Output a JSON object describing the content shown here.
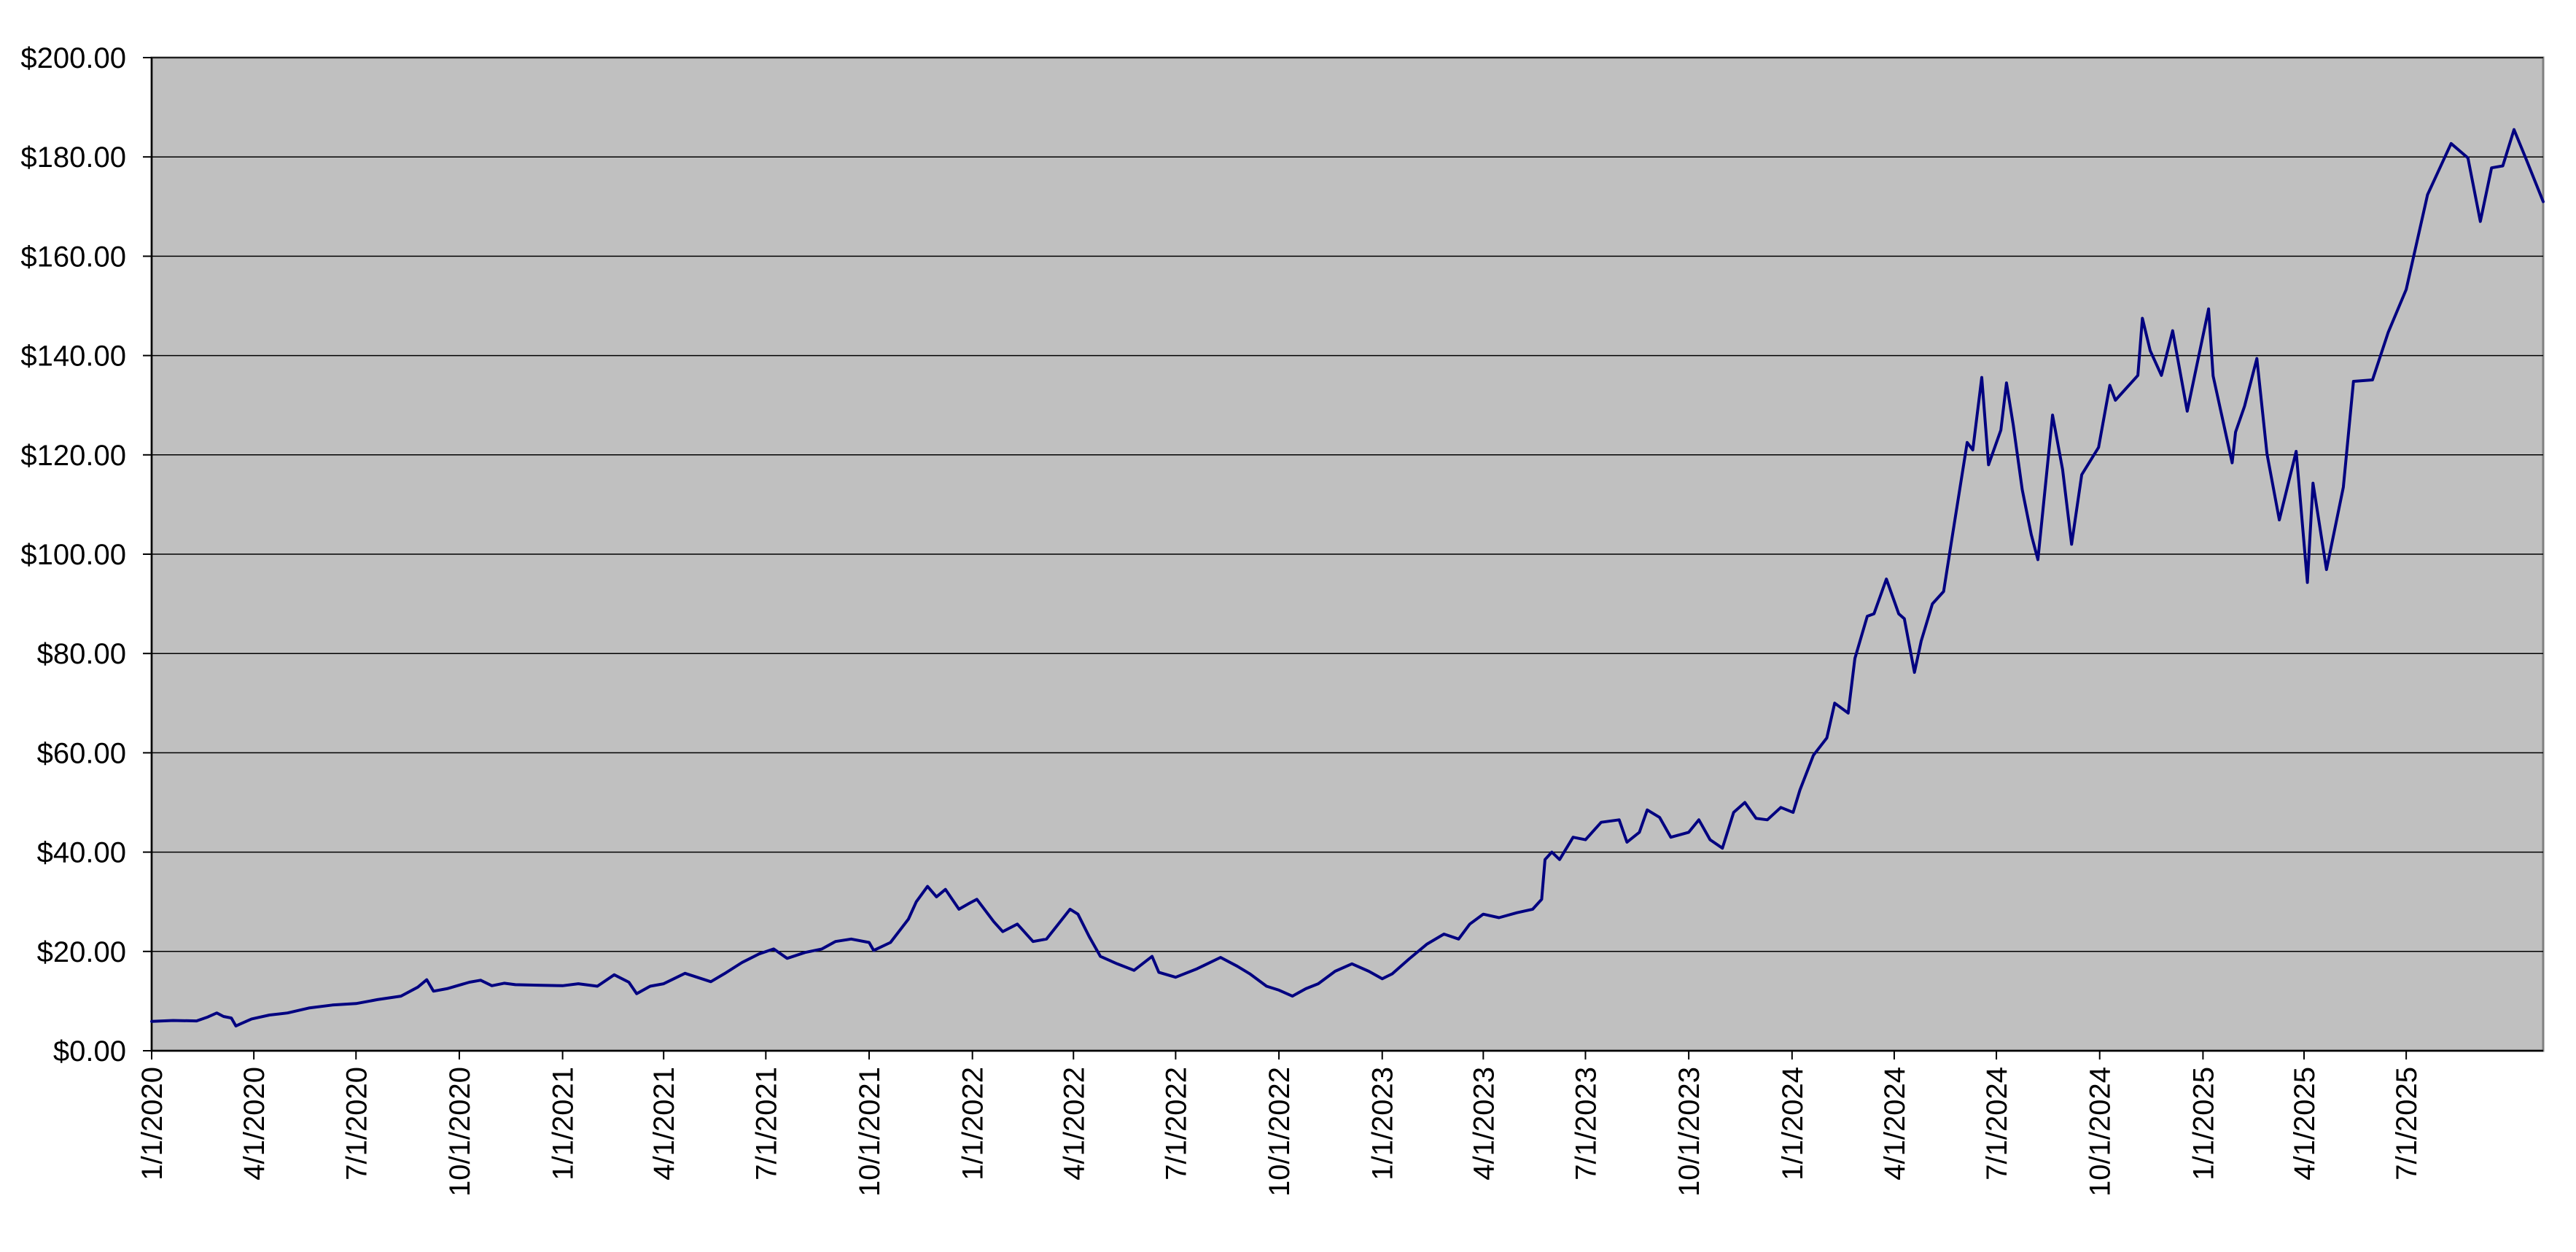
{
  "chart_data": {
    "type": "line",
    "title": "",
    "xlabel": "",
    "ylabel": "",
    "x_range": [
      "2020-01-01",
      "2025-10-31"
    ],
    "ylim": [
      0,
      200
    ],
    "grid": true,
    "legend": "none",
    "colors": {
      "plot_background": "#c0c0c0",
      "gridline": "#000000",
      "series": "#000080",
      "axis": "#000000"
    },
    "y_ticks": [
      {
        "value": 0,
        "label": "$0.00"
      },
      {
        "value": 20,
        "label": "$20.00"
      },
      {
        "value": 40,
        "label": "$40.00"
      },
      {
        "value": 60,
        "label": "$60.00"
      },
      {
        "value": 80,
        "label": "$80.00"
      },
      {
        "value": 100,
        "label": "$100.00"
      },
      {
        "value": 120,
        "label": "$120.00"
      },
      {
        "value": 140,
        "label": "$140.00"
      },
      {
        "value": 160,
        "label": "$160.00"
      },
      {
        "value": 180,
        "label": "$180.00"
      },
      {
        "value": 200,
        "label": "$200.00"
      }
    ],
    "x_ticks": [
      {
        "date": "2020-01-01",
        "label": "1/1/2020"
      },
      {
        "date": "2020-04-01",
        "label": "4/1/2020"
      },
      {
        "date": "2020-07-01",
        "label": "7/1/2020"
      },
      {
        "date": "2020-10-01",
        "label": "10/1/2020"
      },
      {
        "date": "2021-01-01",
        "label": "1/1/2021"
      },
      {
        "date": "2021-04-01",
        "label": "4/1/2021"
      },
      {
        "date": "2021-07-01",
        "label": "7/1/2021"
      },
      {
        "date": "2021-10-01",
        "label": "10/1/2021"
      },
      {
        "date": "2022-01-01",
        "label": "1/1/2022"
      },
      {
        "date": "2022-04-01",
        "label": "4/1/2022"
      },
      {
        "date": "2022-07-01",
        "label": "7/1/2022"
      },
      {
        "date": "2022-10-01",
        "label": "10/1/2022"
      },
      {
        "date": "2023-01-01",
        "label": "1/1/2023"
      },
      {
        "date": "2023-04-01",
        "label": "4/1/2023"
      },
      {
        "date": "2023-07-01",
        "label": "7/1/2023"
      },
      {
        "date": "2023-10-01",
        "label": "10/1/2023"
      },
      {
        "date": "2024-01-01",
        "label": "1/1/2024"
      },
      {
        "date": "2024-04-01",
        "label": "4/1/2024"
      },
      {
        "date": "2024-07-01",
        "label": "7/1/2024"
      },
      {
        "date": "2024-10-01",
        "label": "10/1/2024"
      },
      {
        "date": "2025-01-01",
        "label": "1/1/2025"
      },
      {
        "date": "2025-04-01",
        "label": "4/1/2025"
      },
      {
        "date": "2025-07-01",
        "label": "7/1/2025"
      }
    ],
    "series": [
      {
        "points": [
          [
            "2020-01-01",
            5.9
          ],
          [
            "2020-01-20",
            6.1
          ],
          [
            "2020-02-10",
            6.0
          ],
          [
            "2020-02-20",
            6.8
          ],
          [
            "2020-02-28",
            7.6
          ],
          [
            "2020-03-05",
            6.9
          ],
          [
            "2020-03-12",
            6.6
          ],
          [
            "2020-03-16",
            5.0
          ],
          [
            "2020-03-20",
            5.4
          ],
          [
            "2020-03-30",
            6.4
          ],
          [
            "2020-04-15",
            7.2
          ],
          [
            "2020-05-01",
            7.6
          ],
          [
            "2020-05-20",
            8.6
          ],
          [
            "2020-06-10",
            9.2
          ],
          [
            "2020-07-01",
            9.5
          ],
          [
            "2020-07-20",
            10.3
          ],
          [
            "2020-08-10",
            11.0
          ],
          [
            "2020-08-25",
            12.8
          ],
          [
            "2020-09-02",
            14.3
          ],
          [
            "2020-09-08",
            12.0
          ],
          [
            "2020-09-20",
            12.5
          ],
          [
            "2020-10-10",
            13.8
          ],
          [
            "2020-10-20",
            14.2
          ],
          [
            "2020-10-30",
            13.1
          ],
          [
            "2020-11-10",
            13.6
          ],
          [
            "2020-11-20",
            13.3
          ],
          [
            "2020-12-10",
            13.2
          ],
          [
            "2021-01-01",
            13.1
          ],
          [
            "2021-01-15",
            13.5
          ],
          [
            "2021-02-01",
            13.0
          ],
          [
            "2021-02-16",
            15.3
          ],
          [
            "2021-03-01",
            13.8
          ],
          [
            "2021-03-08",
            11.5
          ],
          [
            "2021-03-20",
            13.0
          ],
          [
            "2021-04-01",
            13.5
          ],
          [
            "2021-04-20",
            15.6
          ],
          [
            "2021-05-05",
            14.5
          ],
          [
            "2021-05-13",
            13.9
          ],
          [
            "2021-05-25",
            15.5
          ],
          [
            "2021-06-10",
            17.8
          ],
          [
            "2021-06-25",
            19.5
          ],
          [
            "2021-07-08",
            20.5
          ],
          [
            "2021-07-20",
            18.6
          ],
          [
            "2021-08-05",
            19.8
          ],
          [
            "2021-08-20",
            20.5
          ],
          [
            "2021-09-01",
            22.0
          ],
          [
            "2021-09-15",
            22.5
          ],
          [
            "2021-10-01",
            21.8
          ],
          [
            "2021-10-05",
            20.2
          ],
          [
            "2021-10-20",
            21.8
          ],
          [
            "2021-11-05",
            26.5
          ],
          [
            "2021-11-12",
            30.0
          ],
          [
            "2021-11-22",
            33.1
          ],
          [
            "2021-11-30",
            31.0
          ],
          [
            "2021-12-08",
            32.5
          ],
          [
            "2021-12-20",
            28.5
          ],
          [
            "2021-12-30",
            29.8
          ],
          [
            "2022-01-05",
            30.5
          ],
          [
            "2022-01-20",
            26.0
          ],
          [
            "2022-01-28",
            24.0
          ],
          [
            "2022-02-10",
            25.5
          ],
          [
            "2022-02-24",
            22.0
          ],
          [
            "2022-03-08",
            22.5
          ],
          [
            "2022-03-29",
            28.5
          ],
          [
            "2022-04-05",
            27.5
          ],
          [
            "2022-04-15",
            23.0
          ],
          [
            "2022-04-25",
            19.0
          ],
          [
            "2022-05-10",
            17.5
          ],
          [
            "2022-05-25",
            16.2
          ],
          [
            "2022-06-10",
            19.0
          ],
          [
            "2022-06-16",
            15.8
          ],
          [
            "2022-07-01",
            14.8
          ],
          [
            "2022-07-20",
            16.5
          ],
          [
            "2022-08-10",
            18.8
          ],
          [
            "2022-08-25",
            17.0
          ],
          [
            "2022-09-05",
            15.5
          ],
          [
            "2022-09-20",
            13.0
          ],
          [
            "2022-10-01",
            12.2
          ],
          [
            "2022-10-13",
            11.0
          ],
          [
            "2022-10-25",
            12.5
          ],
          [
            "2022-11-05",
            13.5
          ],
          [
            "2022-11-20",
            16.0
          ],
          [
            "2022-12-05",
            17.5
          ],
          [
            "2022-12-20",
            16.0
          ],
          [
            "2023-01-01",
            14.5
          ],
          [
            "2023-01-10",
            15.5
          ],
          [
            "2023-01-25",
            18.5
          ],
          [
            "2023-02-10",
            21.5
          ],
          [
            "2023-02-25",
            23.5
          ],
          [
            "2023-03-10",
            22.5
          ],
          [
            "2023-03-20",
            25.5
          ],
          [
            "2023-04-01",
            27.5
          ],
          [
            "2023-04-15",
            26.8
          ],
          [
            "2023-05-01",
            27.8
          ],
          [
            "2023-05-15",
            28.5
          ],
          [
            "2023-05-23",
            30.5
          ],
          [
            "2023-05-26",
            38.5
          ],
          [
            "2023-06-01",
            40.0
          ],
          [
            "2023-06-08",
            38.5
          ],
          [
            "2023-06-20",
            43.0
          ],
          [
            "2023-07-01",
            42.5
          ],
          [
            "2023-07-15",
            46.0
          ],
          [
            "2023-07-31",
            46.5
          ],
          [
            "2023-08-07",
            42.0
          ],
          [
            "2023-08-18",
            44.0
          ],
          [
            "2023-08-25",
            48.5
          ],
          [
            "2023-09-05",
            47.0
          ],
          [
            "2023-09-15",
            43.0
          ],
          [
            "2023-10-01",
            44.0
          ],
          [
            "2023-10-10",
            46.5
          ],
          [
            "2023-10-20",
            42.5
          ],
          [
            "2023-10-31",
            40.8
          ],
          [
            "2023-11-10",
            48.0
          ],
          [
            "2023-11-20",
            50.0
          ],
          [
            "2023-11-30",
            46.8
          ],
          [
            "2023-12-10",
            46.5
          ],
          [
            "2023-12-22",
            49.0
          ],
          [
            "2024-01-02",
            48.0
          ],
          [
            "2024-01-08",
            52.5
          ],
          [
            "2024-01-20",
            59.5
          ],
          [
            "2024-02-01",
            63.0
          ],
          [
            "2024-02-08",
            70.0
          ],
          [
            "2024-02-20",
            68.0
          ],
          [
            "2024-02-26",
            79.0
          ],
          [
            "2024-03-08",
            87.5
          ],
          [
            "2024-03-14",
            88.0
          ],
          [
            "2024-03-25",
            95.0
          ],
          [
            "2024-04-05",
            88.0
          ],
          [
            "2024-04-10",
            87.0
          ],
          [
            "2024-04-19",
            76.2
          ],
          [
            "2024-04-25",
            82.5
          ],
          [
            "2024-05-05",
            90.0
          ],
          [
            "2024-05-15",
            92.5
          ],
          [
            "2024-05-23",
            104.0
          ],
          [
            "2024-06-05",
            122.5
          ],
          [
            "2024-06-10",
            121.0
          ],
          [
            "2024-06-18",
            135.6
          ],
          [
            "2024-06-24",
            118.0
          ],
          [
            "2024-07-05",
            125.0
          ],
          [
            "2024-07-10",
            134.5
          ],
          [
            "2024-07-16",
            126.0
          ],
          [
            "2024-07-24",
            113.0
          ],
          [
            "2024-08-01",
            104.0
          ],
          [
            "2024-08-07",
            98.9
          ],
          [
            "2024-08-20",
            128.0
          ],
          [
            "2024-08-29",
            117.0
          ],
          [
            "2024-09-06",
            102.0
          ],
          [
            "2024-09-15",
            116.0
          ],
          [
            "2024-09-30",
            121.5
          ],
          [
            "2024-10-10",
            134.0
          ],
          [
            "2024-10-15",
            131.0
          ],
          [
            "2024-11-04",
            136.0
          ],
          [
            "2024-11-08",
            147.5
          ],
          [
            "2024-11-15",
            141.0
          ],
          [
            "2024-11-25",
            136.0
          ],
          [
            "2024-12-05",
            145.0
          ],
          [
            "2024-12-18",
            128.8
          ],
          [
            "2025-01-06",
            149.4
          ],
          [
            "2025-01-10",
            135.9
          ],
          [
            "2025-01-27",
            118.4
          ],
          [
            "2025-01-30",
            124.6
          ],
          [
            "2025-02-07",
            129.8
          ],
          [
            "2025-02-18",
            139.4
          ],
          [
            "2025-02-27",
            120.2
          ],
          [
            "2025-03-10",
            106.9
          ],
          [
            "2025-03-25",
            120.7
          ],
          [
            "2025-04-04",
            94.3
          ],
          [
            "2025-04-09",
            114.3
          ],
          [
            "2025-04-21",
            96.9
          ],
          [
            "2025-05-06",
            113.5
          ],
          [
            "2025-05-15",
            134.8
          ],
          [
            "2025-06-01",
            135.1
          ],
          [
            "2025-06-15",
            144.7
          ],
          [
            "2025-07-01",
            153.3
          ],
          [
            "2025-07-20",
            172.4
          ],
          [
            "2025-08-10",
            182.7
          ],
          [
            "2025-08-25",
            179.8
          ],
          [
            "2025-09-05",
            167.0
          ],
          [
            "2025-09-15",
            177.8
          ],
          [
            "2025-09-25",
            178.2
          ],
          [
            "2025-10-05",
            185.5
          ],
          [
            "2025-10-15",
            180.0
          ],
          [
            "2025-10-31",
            171.0
          ]
        ]
      }
    ]
  }
}
